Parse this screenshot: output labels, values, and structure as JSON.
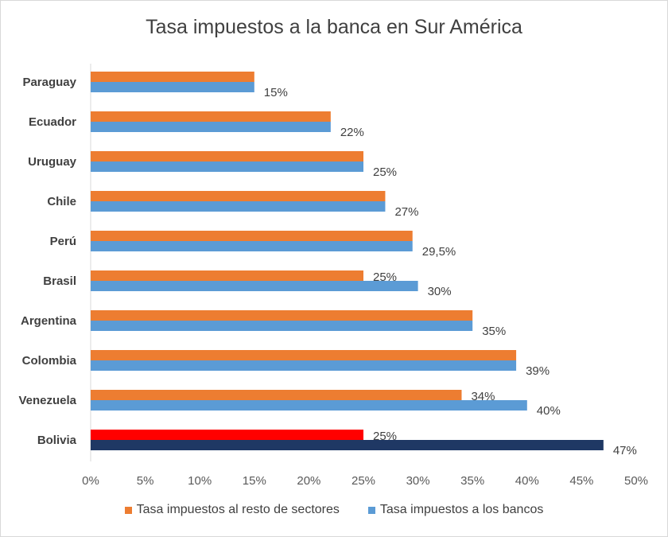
{
  "chart_data": {
    "type": "bar",
    "orientation": "horizontal",
    "title": "Tasa impuestos a la banca en Sur América",
    "xlabel": "",
    "ylabel": "",
    "xlim": [
      0,
      50
    ],
    "x_ticks": [
      "0%",
      "5%",
      "10%",
      "15%",
      "20%",
      "25%",
      "30%",
      "35%",
      "40%",
      "45%",
      "50%"
    ],
    "grid": false,
    "legend_position": "bottom",
    "categories": [
      "Paraguay",
      "Ecuador",
      "Uruguay",
      "Chile",
      "Perú",
      "Brasil",
      "Argentina",
      "Colombia",
      "Venezuela",
      "Bolivia"
    ],
    "series": [
      {
        "name": "Tasa impuestos al resto de sectores",
        "color": "#ed7d31",
        "values": [
          15,
          22,
          25,
          27,
          29.5,
          25,
          35,
          39,
          34,
          25
        ],
        "labels": [
          "",
          "",
          "",
          "",
          "",
          "25%",
          "",
          "",
          "34%",
          "25%"
        ],
        "point_colors": [
          "",
          "",
          "",
          "",
          "",
          "",
          "",
          "",
          "",
          "#ff0000"
        ]
      },
      {
        "name": "Tasa impuestos a los bancos",
        "color": "#5b9bd5",
        "values": [
          15,
          22,
          25,
          27,
          29.5,
          30,
          35,
          39,
          40,
          47
        ],
        "labels": [
          "15%",
          "22%",
          "25%",
          "27%",
          "29,5%",
          "30%",
          "35%",
          "39%",
          "40%",
          "47%"
        ],
        "point_colors": [
          "",
          "",
          "",
          "",
          "",
          "",
          "",
          "",
          "",
          "#1f3864"
        ]
      }
    ]
  }
}
